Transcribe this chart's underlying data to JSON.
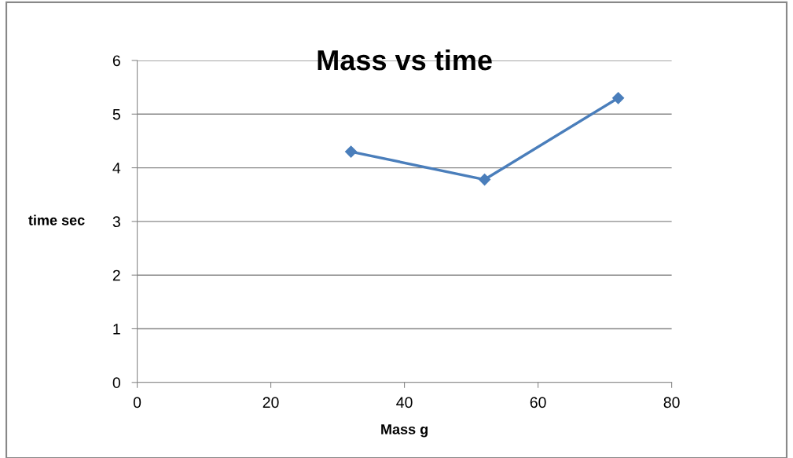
{
  "chart_data": {
    "type": "line",
    "title": "Mass vs time",
    "xlabel": "Mass g",
    "ylabel": "time sec",
    "series": [
      {
        "color": "#4a7ebb",
        "x": [
          32,
          52,
          72
        ],
        "values": [
          4.3,
          3.78,
          5.3
        ]
      }
    ],
    "xlim": [
      0,
      80
    ],
    "xticks": [
      0,
      20,
      40,
      60,
      80
    ],
    "ylim": [
      0,
      6
    ],
    "yticks": [
      0,
      1,
      2,
      3,
      4,
      5,
      6
    ],
    "grid": "y",
    "marker": "diamond",
    "line_style": "solid",
    "legend": false
  }
}
